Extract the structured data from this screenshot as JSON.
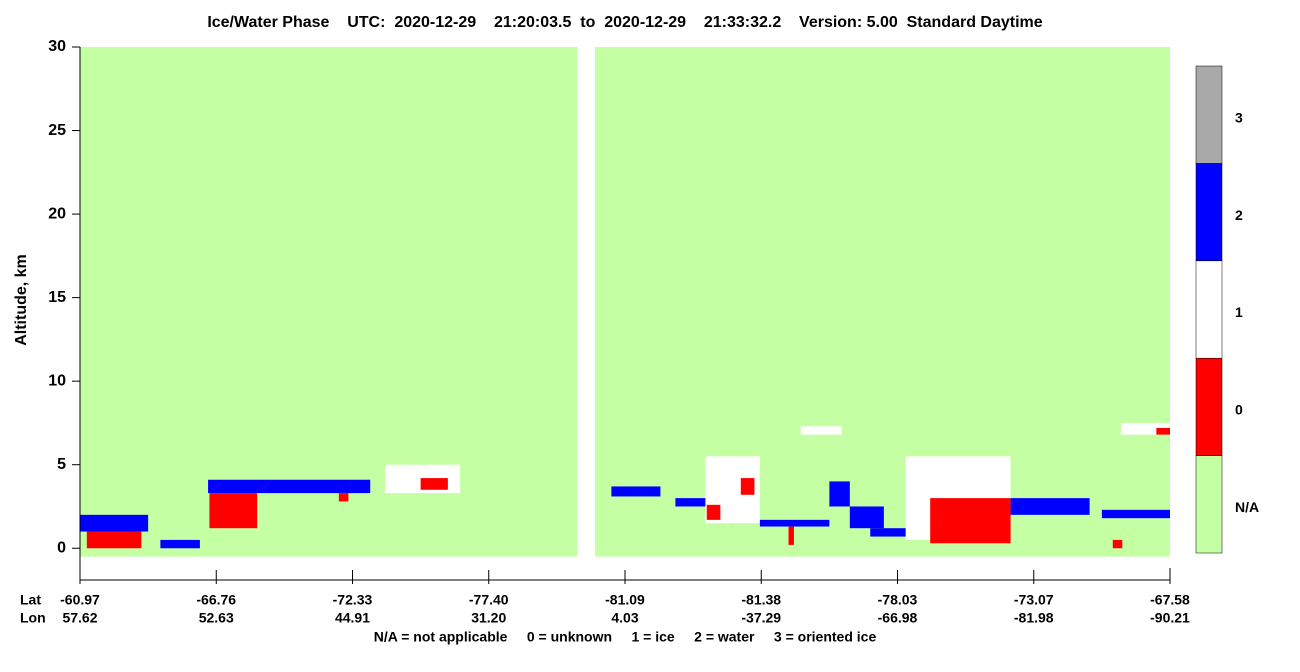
{
  "chart_data": {
    "type": "curtain",
    "title": "Ice/Water Phase    UTC:  2020-12-29    21:20:03.5  to  2020-12-29    21:33:32.2    Version: 5.00  Standard Daytime",
    "ylabel": "Altitude, km",
    "ylim": [
      -1.9,
      30
    ],
    "yticks": [
      0,
      5,
      10,
      15,
      20,
      25,
      30
    ],
    "x_rows": [
      {
        "name": "Lat",
        "labels": [
          "-60.97",
          "-66.76",
          "-72.33",
          "-77.40",
          "-81.09",
          "-81.38",
          "-78.03",
          "-73.07",
          "-67.58"
        ]
      },
      {
        "name": "Lon",
        "labels": [
          "57.62",
          "52.63",
          "44.91",
          "31.20",
          "4.03",
          "-37.29",
          "-66.98",
          "-81.98",
          "-90.21"
        ]
      }
    ],
    "footnote": "N/A = not applicable     0 = unknown     1 = ice     2 = water     3 = oriented ice",
    "classes": [
      {
        "label": "N/A",
        "color": "#c4ffa4"
      },
      {
        "label": "0",
        "color": "#ff0000"
      },
      {
        "label": "1",
        "color": "#ffffff"
      },
      {
        "label": "2",
        "color": "#0000ff"
      },
      {
        "label": "3",
        "color": "#a9a9a9"
      }
    ],
    "background": {
      "phase": "N/A",
      "y": [
        -0.5,
        30
      ],
      "x": [
        [
          0,
          3.65
        ],
        [
          3.78,
          8
        ]
      ]
    },
    "features": [
      {
        "phase": "2",
        "x": [
          0,
          0.5
        ],
        "y": [
          1,
          2
        ]
      },
      {
        "phase": "0",
        "x": [
          0.05,
          0.45
        ],
        "y": [
          0,
          1
        ]
      },
      {
        "phase": "2",
        "x": [
          0.59,
          0.88
        ],
        "y": [
          0,
          0.5
        ]
      },
      {
        "phase": "2",
        "x": [
          0.94,
          2.13
        ],
        "y": [
          3.3,
          4.1
        ]
      },
      {
        "phase": "0",
        "x": [
          0.95,
          1.3
        ],
        "y": [
          1.2,
          3.3
        ]
      },
      {
        "phase": "0",
        "x": [
          1.9,
          1.97
        ],
        "y": [
          2.8,
          3.3
        ]
      },
      {
        "phase": "1",
        "x": [
          2.24,
          2.79
        ],
        "y": [
          3.3,
          5
        ]
      },
      {
        "phase": "0",
        "x": [
          2.5,
          2.7
        ],
        "y": [
          3.5,
          4.2
        ]
      },
      {
        "phase": "2",
        "x": [
          3.9,
          4.26
        ],
        "y": [
          3.1,
          3.7
        ]
      },
      {
        "phase": "2",
        "x": [
          4.37,
          4.7
        ],
        "y": [
          2.5,
          3
        ]
      },
      {
        "phase": "1",
        "x": [
          4.59,
          4.99
        ],
        "y": [
          1.5,
          5.5
        ]
      },
      {
        "phase": "0",
        "x": [
          4.6,
          4.7
        ],
        "y": [
          1.7,
          2.6
        ]
      },
      {
        "phase": "0",
        "x": [
          4.85,
          4.95
        ],
        "y": [
          3.2,
          4.2
        ]
      },
      {
        "phase": "2",
        "x": [
          4.99,
          5.5
        ],
        "y": [
          1.3,
          1.7
        ]
      },
      {
        "phase": "0",
        "x": [
          5.2,
          5.24
        ],
        "y": [
          0.2,
          1.3
        ]
      },
      {
        "phase": "2",
        "x": [
          5.5,
          5.65
        ],
        "y": [
          2.5,
          4
        ]
      },
      {
        "phase": "2",
        "x": [
          5.65,
          5.9
        ],
        "y": [
          1.2,
          2.5
        ]
      },
      {
        "phase": "2",
        "x": [
          5.8,
          6.3
        ],
        "y": [
          0.7,
          1.2
        ]
      },
      {
        "phase": "1",
        "x": [
          6.06,
          6.83
        ],
        "y": [
          0.5,
          5.5
        ]
      },
      {
        "phase": "0",
        "x": [
          6.24,
          6.83
        ],
        "y": [
          0.3,
          3
        ]
      },
      {
        "phase": "2",
        "x": [
          6.83,
          7.41
        ],
        "y": [
          2,
          3
        ]
      },
      {
        "phase": "2",
        "x": [
          7.5,
          8
        ],
        "y": [
          1.8,
          2.3
        ]
      },
      {
        "phase": "0",
        "x": [
          7.58,
          7.65
        ],
        "y": [
          0,
          0.5
        ]
      },
      {
        "phase": "1",
        "x": [
          5.29,
          5.59
        ],
        "y": [
          6.8,
          7.3
        ]
      },
      {
        "phase": "1",
        "x": [
          7.64,
          8
        ],
        "y": [
          6.8,
          7.5
        ]
      },
      {
        "phase": "0",
        "x": [
          7.9,
          8
        ],
        "y": [
          6.8,
          7.2
        ]
      }
    ]
  }
}
